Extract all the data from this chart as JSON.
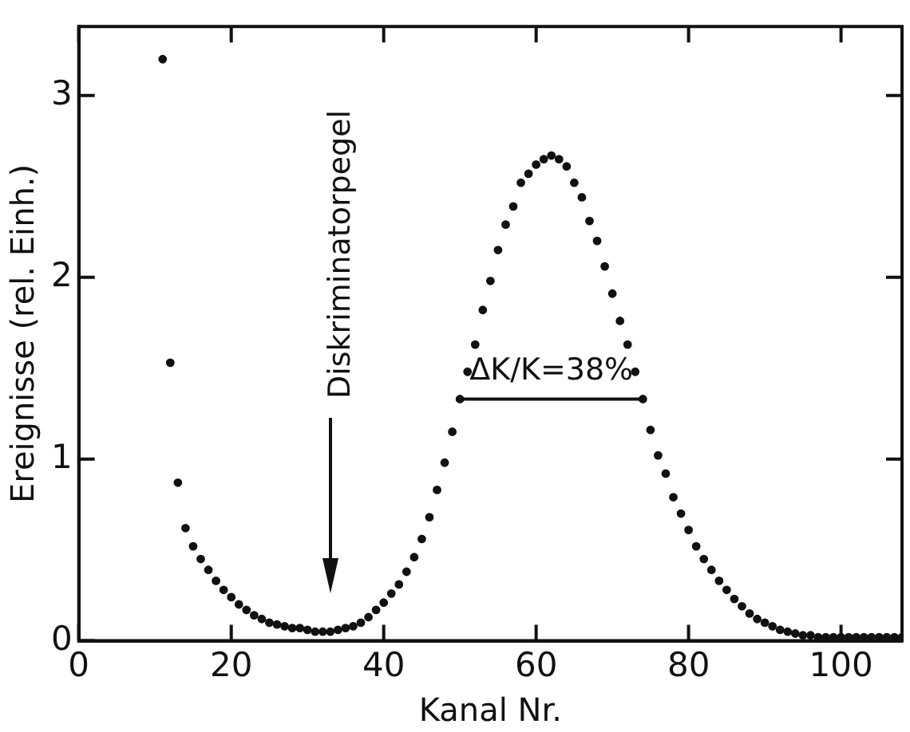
{
  "chart_data": {
    "type": "scatter",
    "xlabel": "Kanal Nr.",
    "ylabel": "Ereignisse (rel. Einh.)",
    "xlim": [
      0,
      108
    ],
    "ylim": [
      0,
      3.38
    ],
    "xticks": [
      0,
      20,
      40,
      60,
      80,
      100
    ],
    "yticks": [
      0,
      1,
      2,
      3
    ],
    "grid": false,
    "marker": "circle",
    "series": [
      {
        "color": "#111111",
        "x": [
          11,
          12,
          13,
          14,
          15,
          16,
          17,
          18,
          19,
          20,
          21,
          22,
          23,
          24,
          25,
          26,
          27,
          28,
          29,
          30,
          31,
          32,
          33,
          34,
          35,
          36,
          37,
          38,
          39,
          40,
          41,
          42,
          43,
          44,
          45,
          46,
          47,
          48,
          49,
          50,
          51,
          52,
          53,
          54,
          55,
          56,
          57,
          58,
          59,
          60,
          61,
          62,
          63,
          64,
          65,
          66,
          67,
          68,
          69,
          70,
          71,
          72,
          73,
          74,
          75,
          76,
          77,
          78,
          79,
          80,
          81,
          82,
          83,
          84,
          85,
          86,
          87,
          88,
          89,
          90,
          91,
          92,
          93,
          94,
          95,
          96,
          97,
          98,
          99,
          100,
          101,
          102,
          103,
          104,
          105,
          106,
          107,
          108
        ],
        "values": [
          3.2,
          1.53,
          0.87,
          0.62,
          0.52,
          0.45,
          0.39,
          0.33,
          0.28,
          0.24,
          0.2,
          0.17,
          0.14,
          0.12,
          0.1,
          0.09,
          0.08,
          0.07,
          0.07,
          0.06,
          0.05,
          0.05,
          0.05,
          0.06,
          0.07,
          0.08,
          0.1,
          0.13,
          0.17,
          0.21,
          0.26,
          0.31,
          0.38,
          0.46,
          0.56,
          0.68,
          0.83,
          0.98,
          1.15,
          1.33,
          1.48,
          1.63,
          1.82,
          1.98,
          2.15,
          2.29,
          2.39,
          2.52,
          2.57,
          2.62,
          2.65,
          2.67,
          2.65,
          2.61,
          2.52,
          2.44,
          2.31,
          2.2,
          2.06,
          1.91,
          1.76,
          1.63,
          1.48,
          1.33,
          1.16,
          1.02,
          0.92,
          0.79,
          0.7,
          0.61,
          0.52,
          0.45,
          0.39,
          0.33,
          0.28,
          0.23,
          0.19,
          0.15,
          0.12,
          0.1,
          0.08,
          0.06,
          0.05,
          0.04,
          0.03,
          0.03,
          0.02,
          0.02,
          0.02,
          0.02,
          0.02,
          0.02,
          0.02,
          0.02,
          0.02,
          0.02,
          0.02,
          0.02
        ]
      },
      {
        "type": "line",
        "marker": "none",
        "color": "#111111",
        "x": [
          49.5,
          74
        ],
        "values": [
          1.33,
          1.33
        ]
      }
    ],
    "annotations": [
      "Diskriminatorpegel",
      {
        "text": "ΔK/K=38%",
        "x": 62,
        "y": 1.33
      }
    ]
  }
}
